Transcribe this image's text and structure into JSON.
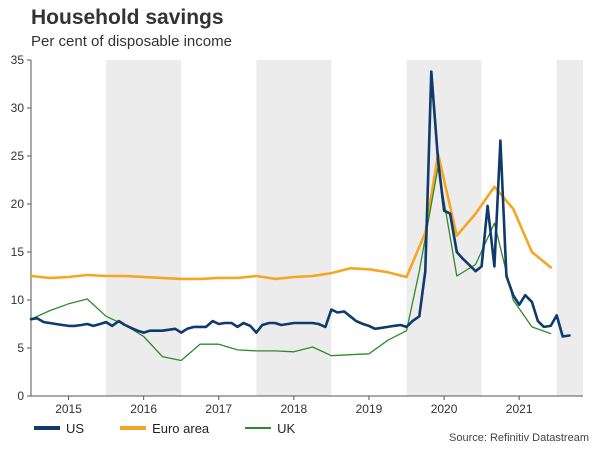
{
  "header": {
    "title": "Household savings",
    "subtitle": "Per cent of disposable income"
  },
  "source": "Source: Refinitiv Datastream",
  "colors": {
    "us": "#0f3a6b",
    "euro": "#f5a623",
    "uk": "#2e8b2a",
    "band": "#ececec",
    "axis": "#555555"
  },
  "chart_data": {
    "type": "line",
    "title": "Household savings",
    "subtitle": "Per cent of disposable income",
    "xlabel": "",
    "ylabel": "",
    "xlim": [
      2014.5,
      2021.85
    ],
    "ylim": [
      0,
      35
    ],
    "y_ticks": [
      0,
      5,
      10,
      15,
      20,
      25,
      30,
      35
    ],
    "year_labels": [
      {
        "label": "2015",
        "x": 2015
      },
      {
        "label": "2016",
        "x": 2016
      },
      {
        "label": "2017",
        "x": 2017
      },
      {
        "label": "2018",
        "x": 2018
      },
      {
        "label": "2019",
        "x": 2019
      },
      {
        "label": "2020",
        "x": 2020
      },
      {
        "label": "2021",
        "x": 2021
      }
    ],
    "shaded_years": [
      [
        2015.5,
        2016.5
      ],
      [
        2017.5,
        2018.5
      ],
      [
        2019.5,
        2020.5
      ],
      [
        2021.5,
        2021.85
      ]
    ],
    "legend": [
      "US",
      "Euro area",
      "UK"
    ],
    "series": [
      {
        "name": "US",
        "key": "us",
        "points": [
          [
            2014.5,
            8.0
          ],
          [
            2014.58,
            8.1
          ],
          [
            2014.67,
            7.7
          ],
          [
            2014.75,
            7.6
          ],
          [
            2014.83,
            7.5
          ],
          [
            2014.92,
            7.4
          ],
          [
            2015.0,
            7.3
          ],
          [
            2015.08,
            7.3
          ],
          [
            2015.17,
            7.4
          ],
          [
            2015.25,
            7.5
          ],
          [
            2015.33,
            7.3
          ],
          [
            2015.42,
            7.5
          ],
          [
            2015.5,
            7.7
          ],
          [
            2015.58,
            7.3
          ],
          [
            2015.67,
            7.8
          ],
          [
            2015.75,
            7.4
          ],
          [
            2015.83,
            7.1
          ],
          [
            2015.92,
            6.8
          ],
          [
            2016.0,
            6.6
          ],
          [
            2016.08,
            6.8
          ],
          [
            2016.17,
            6.8
          ],
          [
            2016.25,
            6.8
          ],
          [
            2016.33,
            6.9
          ],
          [
            2016.42,
            7.0
          ],
          [
            2016.5,
            6.6
          ],
          [
            2016.58,
            7.0
          ],
          [
            2016.67,
            7.2
          ],
          [
            2016.75,
            7.2
          ],
          [
            2016.83,
            7.2
          ],
          [
            2016.92,
            7.8
          ],
          [
            2017.0,
            7.5
          ],
          [
            2017.08,
            7.6
          ],
          [
            2017.17,
            7.6
          ],
          [
            2017.25,
            7.2
          ],
          [
            2017.33,
            7.6
          ],
          [
            2017.42,
            7.3
          ],
          [
            2017.5,
            6.6
          ],
          [
            2017.58,
            7.4
          ],
          [
            2017.67,
            7.6
          ],
          [
            2017.75,
            7.6
          ],
          [
            2017.83,
            7.4
          ],
          [
            2017.92,
            7.5
          ],
          [
            2018.0,
            7.6
          ],
          [
            2018.08,
            7.6
          ],
          [
            2018.17,
            7.6
          ],
          [
            2018.25,
            7.6
          ],
          [
            2018.33,
            7.5
          ],
          [
            2018.42,
            7.2
          ],
          [
            2018.5,
            9.0
          ],
          [
            2018.58,
            8.7
          ],
          [
            2018.67,
            8.8
          ],
          [
            2018.75,
            8.3
          ],
          [
            2018.83,
            7.8
          ],
          [
            2018.92,
            7.5
          ],
          [
            2019.0,
            7.3
          ],
          [
            2019.08,
            7.0
          ],
          [
            2019.17,
            7.1
          ],
          [
            2019.25,
            7.2
          ],
          [
            2019.33,
            7.3
          ],
          [
            2019.42,
            7.4
          ],
          [
            2019.5,
            7.2
          ],
          [
            2019.58,
            7.8
          ],
          [
            2019.67,
            8.3
          ],
          [
            2019.75,
            13.0
          ],
          [
            2019.83,
            33.8
          ],
          [
            2019.92,
            24.5
          ],
          [
            2020.0,
            19.3
          ],
          [
            2020.08,
            19.0
          ],
          [
            2020.17,
            15.0
          ],
          [
            2020.25,
            14.3
          ],
          [
            2020.33,
            13.7
          ],
          [
            2020.42,
            13.0
          ],
          [
            2020.5,
            13.5
          ],
          [
            2020.58,
            19.8
          ],
          [
            2020.67,
            13.5
          ],
          [
            2020.75,
            26.6
          ],
          [
            2020.83,
            12.5
          ],
          [
            2020.92,
            10.5
          ],
          [
            2021.0,
            9.5
          ],
          [
            2021.08,
            10.5
          ],
          [
            2021.17,
            9.8
          ],
          [
            2021.25,
            7.8
          ],
          [
            2021.33,
            7.2
          ],
          [
            2021.42,
            7.3
          ],
          [
            2021.5,
            8.4
          ],
          [
            2021.58,
            6.2
          ],
          [
            2021.67,
            6.3
          ]
        ]
      },
      {
        "name": "Euro area",
        "key": "euro",
        "points": [
          [
            2014.5,
            12.5
          ],
          [
            2014.75,
            12.3
          ],
          [
            2015.0,
            12.4
          ],
          [
            2015.25,
            12.6
          ],
          [
            2015.5,
            12.5
          ],
          [
            2015.75,
            12.5
          ],
          [
            2016.0,
            12.4
          ],
          [
            2016.25,
            12.3
          ],
          [
            2016.5,
            12.2
          ],
          [
            2016.75,
            12.2
          ],
          [
            2017.0,
            12.3
          ],
          [
            2017.25,
            12.3
          ],
          [
            2017.5,
            12.5
          ],
          [
            2017.75,
            12.2
          ],
          [
            2018.0,
            12.4
          ],
          [
            2018.25,
            12.5
          ],
          [
            2018.5,
            12.8
          ],
          [
            2018.75,
            13.3
          ],
          [
            2019.0,
            13.2
          ],
          [
            2019.25,
            12.9
          ],
          [
            2019.5,
            12.4
          ],
          [
            2019.75,
            17.0
          ],
          [
            2019.92,
            25.2
          ],
          [
            2020.17,
            16.7
          ],
          [
            2020.42,
            19.0
          ],
          [
            2020.67,
            21.8
          ],
          [
            2020.92,
            19.5
          ],
          [
            2021.17,
            15.0
          ],
          [
            2021.42,
            13.4
          ]
        ]
      },
      {
        "name": "UK",
        "key": "uk",
        "points": [
          [
            2014.5,
            8.0
          ],
          [
            2014.75,
            8.9
          ],
          [
            2015.0,
            9.6
          ],
          [
            2015.25,
            10.1
          ],
          [
            2015.5,
            8.3
          ],
          [
            2015.75,
            7.4
          ],
          [
            2016.0,
            6.2
          ],
          [
            2016.25,
            4.1
          ],
          [
            2016.5,
            3.7
          ],
          [
            2016.75,
            5.4
          ],
          [
            2017.0,
            5.4
          ],
          [
            2017.25,
            4.8
          ],
          [
            2017.5,
            4.7
          ],
          [
            2017.75,
            4.7
          ],
          [
            2018.0,
            4.6
          ],
          [
            2018.25,
            5.1
          ],
          [
            2018.5,
            4.2
          ],
          [
            2018.75,
            4.3
          ],
          [
            2019.0,
            4.4
          ],
          [
            2019.25,
            5.8
          ],
          [
            2019.5,
            6.8
          ],
          [
            2019.67,
            13.0
          ],
          [
            2019.92,
            23.9
          ],
          [
            2020.17,
            12.5
          ],
          [
            2020.42,
            13.7
          ],
          [
            2020.67,
            18.0
          ],
          [
            2020.92,
            10.0
          ],
          [
            2021.17,
            7.2
          ],
          [
            2021.42,
            6.5
          ]
        ]
      }
    ]
  }
}
